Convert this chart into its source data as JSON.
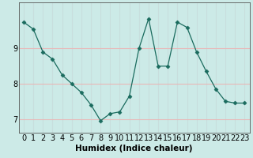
{
  "x": [
    0,
    1,
    2,
    3,
    4,
    5,
    6,
    7,
    8,
    9,
    10,
    11,
    12,
    13,
    14,
    15,
    16,
    17,
    18,
    19,
    20,
    21,
    22,
    23
  ],
  "y": [
    9.75,
    9.55,
    8.9,
    8.7,
    8.25,
    8.0,
    7.75,
    7.4,
    6.95,
    7.15,
    7.2,
    7.65,
    9.0,
    9.85,
    8.5,
    8.5,
    9.75,
    9.6,
    8.9,
    8.35,
    7.85,
    7.5,
    7.45,
    7.45
  ],
  "line_color": "#1a6b5e",
  "marker": "D",
  "marker_size": 2.5,
  "bg_color": "#cceae7",
  "grid_color_h": "#e8b8b8",
  "grid_color_v": "#c8dedd",
  "xlabel": "Humidex (Indice chaleur)",
  "ylim": [
    6.6,
    10.3
  ],
  "yticks": [
    7,
    8,
    9
  ],
  "tick_fontsize": 7,
  "label_fontsize": 7.5
}
